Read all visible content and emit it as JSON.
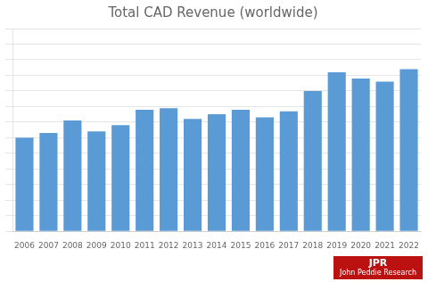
{
  "chart_data": {
    "type": "bar",
    "title": "Total CAD Revenue (worldwide)",
    "categories": [
      "2006",
      "2007",
      "2008",
      "2009",
      "2010",
      "2011",
      "2012",
      "2013",
      "2014",
      "2015",
      "2016",
      "2017",
      "2018",
      "2019",
      "2020",
      "2021",
      "2022"
    ],
    "values": [
      6.0,
      6.3,
      7.1,
      6.4,
      6.8,
      7.8,
      7.9,
      7.2,
      7.5,
      7.8,
      7.3,
      7.7,
      9.0,
      10.2,
      9.8,
      9.6,
      10.4
    ],
    "color": "#5b9bd5",
    "ylim": [
      0,
      13
    ],
    "yticks": [
      0,
      1,
      2,
      3,
      4,
      5,
      6,
      7,
      8,
      9,
      10,
      11,
      12,
      13
    ],
    "grid": true,
    "tick_labels": "x",
    "annotations": [
      {
        "text": "JPR",
        "color": "#bb1111"
      },
      {
        "text": "John Peddie Research",
        "color": "#bb1111"
      }
    ]
  }
}
